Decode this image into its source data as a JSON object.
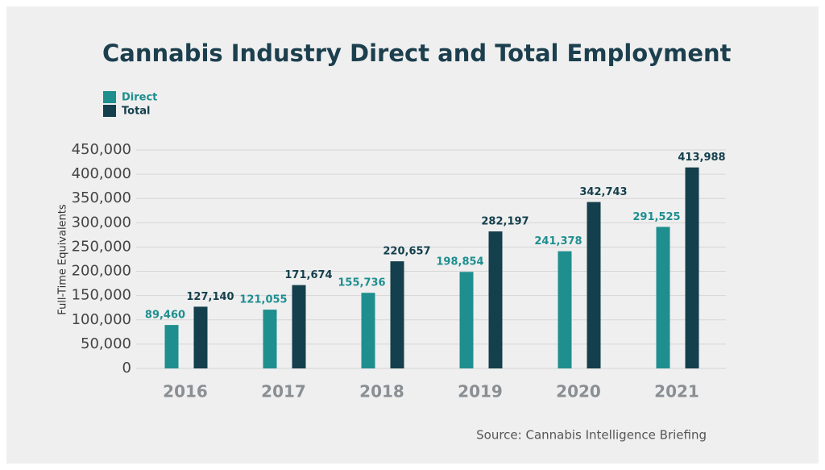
{
  "chart_data": {
    "type": "bar",
    "title": "Cannabis Industry Direct and Total Employment",
    "y_label": "Full-Time Equivalents",
    "source": "Source: Cannabis Intelligence Briefing",
    "categories": [
      "2016",
      "2017",
      "2018",
      "2019",
      "2020",
      "2021"
    ],
    "series": [
      {
        "name": "Direct",
        "color": "#1f8e8f",
        "values": [
          89460,
          121055,
          155736,
          198854,
          241378,
          291525
        ],
        "value_labels": [
          "89,460",
          "121,055",
          "155,736",
          "198,854",
          "241,378",
          "291,525"
        ]
      },
      {
        "name": "Total",
        "color": "#143f4c",
        "values": [
          127140,
          171674,
          220657,
          282197,
          342743,
          413988
        ],
        "value_labels": [
          "127,140",
          "171,674",
          "220,657",
          "282,197",
          "342,743",
          "413,988"
        ]
      }
    ],
    "ylim": [
      0,
      450000
    ],
    "yticks": [
      0,
      {
        "value": 50000,
        "label": "50,000"
      },
      {
        "value": 100000,
        "label": "100,000"
      },
      {
        "value": 150000,
        "label": "150,000"
      },
      {
        "value": 200000,
        "label": "200,000"
      },
      {
        "value": 250000,
        "label": "250,000"
      },
      {
        "value": 300000,
        "label": "300,000"
      },
      {
        "value": 350000,
        "label": "350,000"
      },
      {
        "value": 400000,
        "label": "400,000"
      },
      {
        "value": 450000,
        "label": "450,000"
      }
    ],
    "grid": true,
    "legend": "top-left"
  }
}
